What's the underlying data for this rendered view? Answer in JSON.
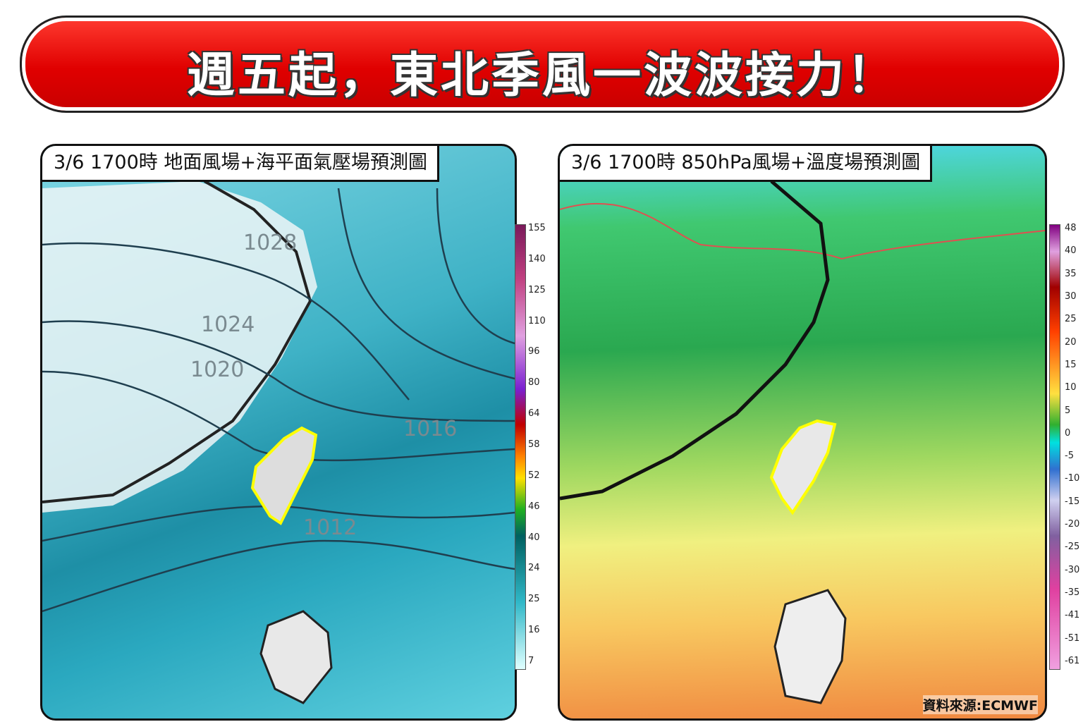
{
  "header": {
    "title": "週五起，東北季風一波波接力！"
  },
  "panels": [
    {
      "title": "3/6 1700時  地面風場+海平面氣壓場預測圖",
      "isobars": [
        "1028",
        "1024",
        "1020",
        "1016",
        "1012"
      ],
      "colorbar": [
        155,
        140,
        125,
        110,
        96,
        80,
        64,
        58,
        52,
        46,
        40,
        24,
        25,
        16,
        7
      ]
    },
    {
      "title": "3/6 1700時  850hPa風場+溫度場預測圖",
      "colorbar": [
        48,
        40,
        35,
        30,
        25,
        20,
        15,
        10,
        5,
        0,
        -5,
        -10,
        -15,
        -20,
        -25,
        -30,
        -35,
        -41,
        -51,
        -61
      ],
      "source": "資料來源:ECMWF"
    }
  ]
}
